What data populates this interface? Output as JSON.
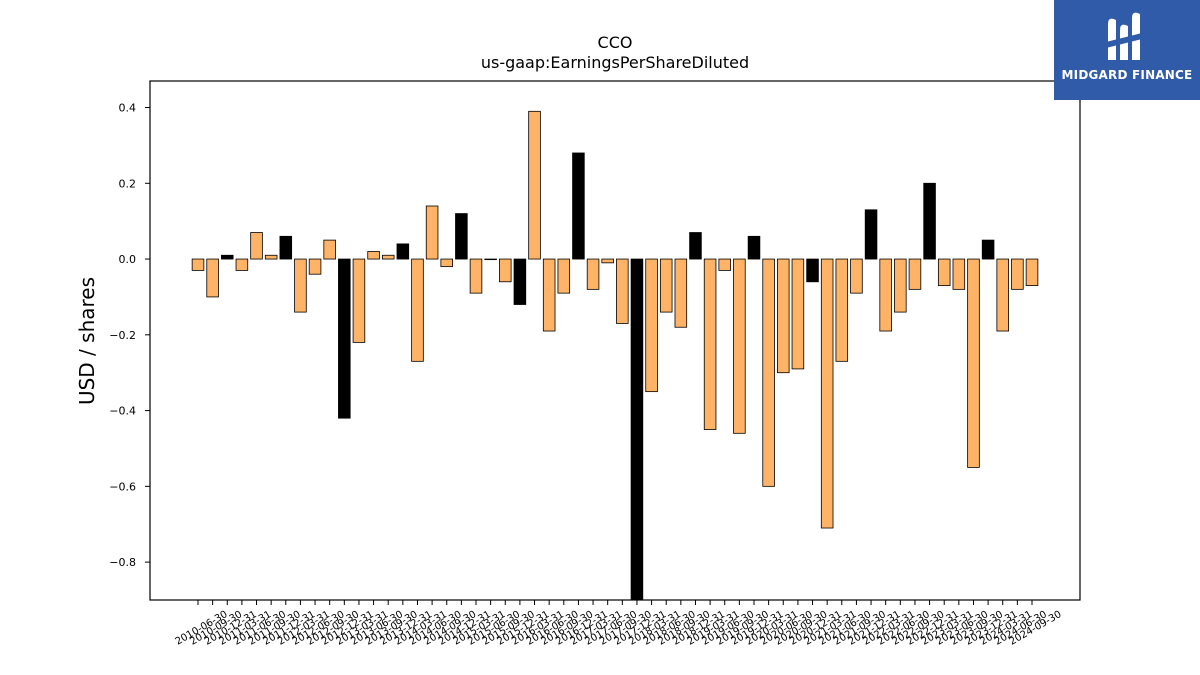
{
  "chart_data": {
    "type": "bar",
    "title": "CCO",
    "subtitle": "us-gaap:EarningsPerShareDiluted",
    "ylabel": "USD / shares",
    "xlabel": "",
    "ylim": [
      -0.9,
      0.47
    ],
    "yticks": [
      0.4,
      0.2,
      0.0,
      -0.2,
      -0.4,
      -0.6,
      -0.8
    ],
    "ytick_labels": [
      "0.4",
      "0.2",
      "0.0",
      "−0.2",
      "−0.4",
      "−0.6",
      "−0.8"
    ],
    "grid": false,
    "colors": {
      "quarter": "#ffb366",
      "annual": "#000000"
    },
    "categories": [
      "2010-06-30",
      "2010-09-30",
      "2010-12-31",
      "2011-03-31",
      "2011-06-30",
      "2011-09-30",
      "2011-12-31",
      "2012-03-31",
      "2012-06-30",
      "2012-09-30",
      "2012-12-31",
      "2013-03-31",
      "2013-06-30",
      "2013-09-30",
      "2013-12-31",
      "2014-03-31",
      "2014-06-30",
      "2014-09-30",
      "2014-12-31",
      "2015-03-31",
      "2015-06-30",
      "2015-09-30",
      "2015-12-31",
      "2016-03-31",
      "2016-06-30",
      "2016-09-30",
      "2016-12-31",
      "2017-03-31",
      "2017-06-30",
      "2017-09-30",
      "2017-12-31",
      "2018-03-31",
      "2018-06-30",
      "2018-09-30",
      "2018-12-31",
      "2019-03-31",
      "2019-06-30",
      "2019-09-30",
      "2019-12-31",
      "2020-03-31",
      "2020-06-30",
      "2020-09-30",
      "2020-12-31",
      "2021-03-31",
      "2021-06-30",
      "2021-09-30",
      "2021-12-31",
      "2022-03-31",
      "2022-06-30",
      "2022-09-30",
      "2022-12-31",
      "2023-03-31",
      "2023-06-30",
      "2023-09-30",
      "2023-12-31",
      "2024-03-31",
      "2024-06-30",
      "2024-09-30"
    ],
    "values": [
      -0.03,
      -0.1,
      0.01,
      -0.03,
      0.07,
      0.01,
      0.06,
      -0.14,
      -0.04,
      0.05,
      -0.42,
      -0.22,
      0.02,
      0.01,
      0.04,
      -0.27,
      0.14,
      -0.02,
      0.12,
      -0.09,
      0.0,
      -0.06,
      -0.12,
      0.39,
      -0.19,
      -0.09,
      0.28,
      -0.08,
      -0.01,
      -0.17,
      -0.92,
      -0.35,
      -0.14,
      -0.18,
      0.07,
      -0.45,
      -0.03,
      -0.46,
      0.06,
      -0.6,
      -0.3,
      -0.29,
      -0.06,
      -0.71,
      -0.27,
      -0.09,
      0.13,
      -0.19,
      -0.14,
      -0.08,
      0.2,
      -0.07,
      -0.08,
      -0.55,
      0.05,
      -0.19,
      -0.08,
      -0.07
    ],
    "annual": [
      0,
      0,
      1,
      0,
      0,
      0,
      1,
      0,
      0,
      0,
      1,
      0,
      0,
      0,
      1,
      0,
      0,
      0,
      1,
      0,
      0,
      0,
      1,
      0,
      0,
      0,
      1,
      0,
      0,
      0,
      1,
      0,
      0,
      0,
      1,
      0,
      0,
      0,
      1,
      0,
      0,
      0,
      1,
      0,
      0,
      0,
      1,
      0,
      0,
      0,
      1,
      0,
      0,
      0,
      1,
      0,
      0,
      0
    ]
  },
  "logo": {
    "text": "MIDGARD FINANCE",
    "icon": "midgard-logo-icon"
  }
}
